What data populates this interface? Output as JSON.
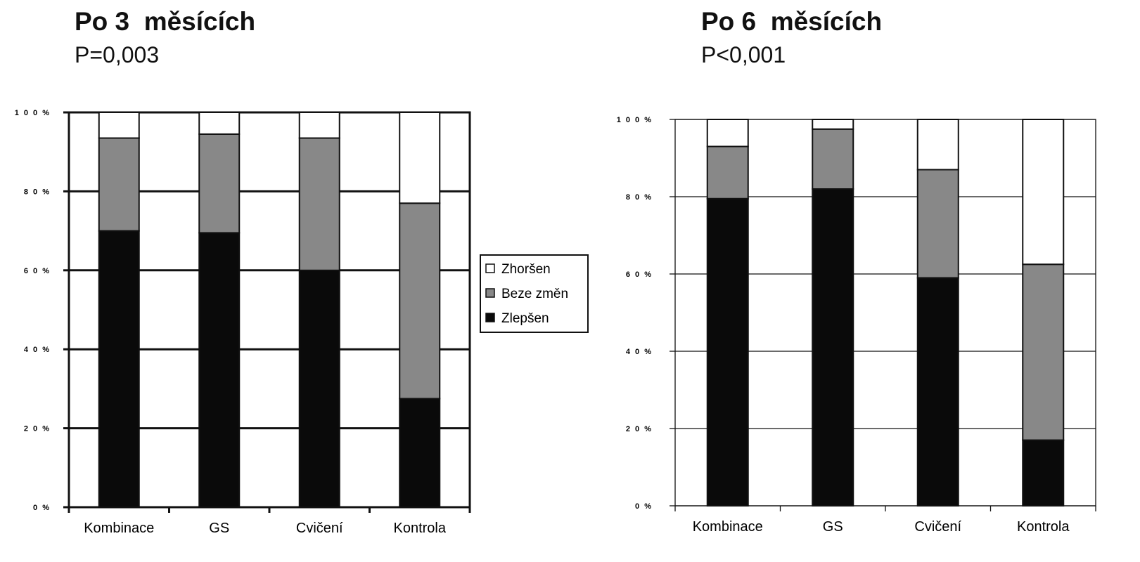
{
  "colors": {
    "Zhoršen": "#ffffff",
    "Beze změn": "#888888",
    "Zlepšen": "#0a0a0a"
  },
  "legend": {
    "title": "",
    "items": [
      "Zhoršen",
      "Beze změn",
      "Zlepšen"
    ]
  },
  "chart_data": [
    {
      "type": "bar",
      "stacked": true,
      "title": "Po 3  měsících",
      "subtitle": "P=0,003",
      "categories": [
        "Kombinace",
        "GS",
        "Cvičení",
        "Kontrola"
      ],
      "ylim": [
        0,
        100
      ],
      "yticks": [
        "0 %",
        "2 0 %",
        "4 0 %",
        "6 0 %",
        "8 0 %",
        "1 0 0 %"
      ],
      "grid": true,
      "legend_position": "right",
      "series": [
        {
          "name": "Zlepšen",
          "values": [
            70,
            69.5,
            60,
            27.5
          ]
        },
        {
          "name": "Beze změn",
          "values": [
            23.5,
            25,
            33.5,
            49.5
          ]
        },
        {
          "name": "Zhoršen",
          "values": [
            6.5,
            5.5,
            6.5,
            23
          ]
        }
      ]
    },
    {
      "type": "bar",
      "stacked": true,
      "title": "Po 6  měsících",
      "subtitle": "P<0,001",
      "categories": [
        "Kombinace",
        "GS",
        "Cvičení",
        "Kontrola"
      ],
      "ylim": [
        0,
        100
      ],
      "yticks": [
        "0 %",
        "2 0 %",
        "4 0 %",
        "6 0 %",
        "8 0 %",
        "1 0 0 %"
      ],
      "grid": true,
      "series": [
        {
          "name": "Zlepšen",
          "values": [
            79.5,
            82,
            59,
            17
          ]
        },
        {
          "name": "Beze změn",
          "values": [
            13.5,
            15.5,
            28,
            45.5
          ]
        },
        {
          "name": "Zhoršen",
          "values": [
            7,
            2.5,
            13,
            37.5
          ]
        }
      ]
    }
  ]
}
